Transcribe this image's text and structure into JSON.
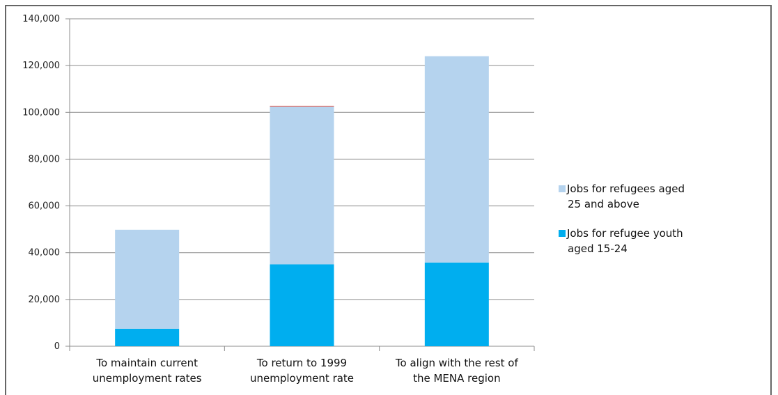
{
  "chart_data": {
    "type": "bar",
    "stacked": true,
    "categories": [
      [
        "To maintain current",
        "unemployment rates"
      ],
      [
        "To return to 1999",
        "unemployment rate"
      ],
      [
        "To align with the rest of",
        "the MENA region"
      ]
    ],
    "series": [
      {
        "name": "Jobs for refugee youth aged 15-24",
        "legend_lines": [
          "Jobs  for  refugee  youth",
          "aged 15-24"
        ],
        "color": "#00AEEF",
        "values": [
          7500,
          35000,
          35800
        ]
      },
      {
        "name": "Jobs for refugees aged 25 and above",
        "legend_lines": [
          "Jobs for refugees aged",
          "25 and above"
        ],
        "color": "#B5D3EE",
        "values": [
          42300,
          67500,
          88200
        ]
      }
    ],
    "highlight_segment": {
      "category_index": 1,
      "value": 300,
      "color": "#E0584D"
    },
    "ylim": [
      0,
      140000
    ],
    "yticks": [
      "0",
      "20,000",
      "40,000",
      "60,000",
      "80,000",
      "100,000",
      "120,000",
      "140,000"
    ],
    "ytick_values": [
      0,
      20000,
      40000,
      60000,
      80000,
      100000,
      120000,
      140000
    ],
    "grid": true,
    "legend_position": "right",
    "title": "",
    "xlabel": "",
    "ylabel": ""
  }
}
